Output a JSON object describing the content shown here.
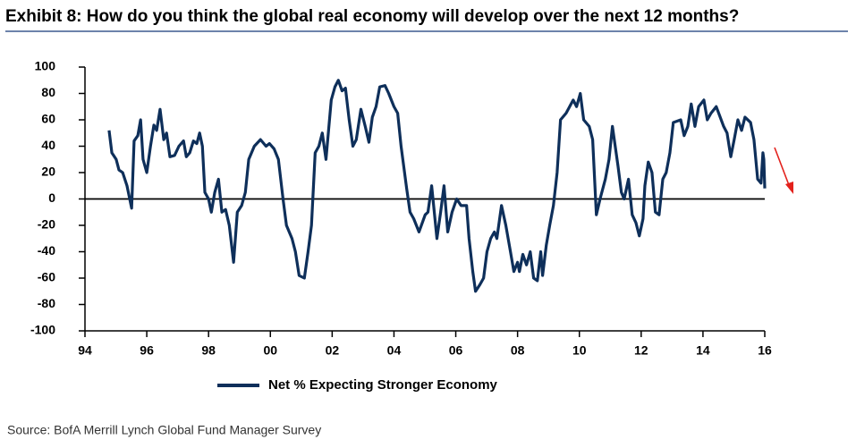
{
  "chart_data": {
    "type": "line",
    "title": "Exhibit 8: How do you think the global real economy will develop over the next 12 months?",
    "source": "Source: BofA Merrill Lynch Global Fund Manager Survey",
    "x": [
      1994.78,
      1994.87,
      1995.01,
      1995.1,
      1995.22,
      1995.36,
      1995.51,
      1995.59,
      1995.71,
      1995.8,
      1995.88,
      1996.0,
      1996.12,
      1996.23,
      1996.32,
      1996.43,
      1996.55,
      1996.64,
      1996.75,
      1996.9,
      1997.04,
      1997.19,
      1997.28,
      1997.39,
      1997.51,
      1997.62,
      1997.71,
      1997.8,
      1997.88,
      1998.0,
      1998.09,
      1998.2,
      1998.32,
      1998.43,
      1998.55,
      1998.67,
      1998.81,
      1998.93,
      1999.07,
      1999.19,
      1999.3,
      1999.48,
      1999.68,
      1999.86,
      1999.97,
      2000.12,
      2000.26,
      2000.41,
      2000.52,
      2000.7,
      2000.81,
      2000.93,
      2001.1,
      2001.22,
      2001.33,
      2001.45,
      2001.57,
      2001.68,
      2001.8,
      2001.97,
      2002.09,
      2002.2,
      2002.32,
      2002.43,
      2002.55,
      2002.67,
      2002.78,
      2002.93,
      2003.07,
      2003.19,
      2003.3,
      2003.42,
      2003.54,
      2003.71,
      2003.83,
      2004.0,
      2004.12,
      2004.23,
      2004.41,
      2004.52,
      2004.64,
      2004.81,
      2005.01,
      2005.1,
      2005.22,
      2005.39,
      2005.51,
      2005.62,
      2005.74,
      2005.88,
      2006.03,
      2006.17,
      2006.35,
      2006.43,
      2006.55,
      2006.64,
      2006.78,
      2006.9,
      2007.01,
      2007.13,
      2007.25,
      2007.33,
      2007.48,
      2007.62,
      2007.77,
      2007.88,
      2008.0,
      2008.06,
      2008.17,
      2008.29,
      2008.41,
      2008.52,
      2008.64,
      2008.75,
      2008.81,
      2008.93,
      2009.04,
      2009.16,
      2009.28,
      2009.39,
      2009.57,
      2009.8,
      2009.91,
      2010.03,
      2010.14,
      2010.32,
      2010.43,
      2010.55,
      2010.67,
      2010.84,
      2010.96,
      2011.07,
      2011.25,
      2011.36,
      2011.45,
      2011.59,
      2011.71,
      2011.83,
      2011.94,
      2012.06,
      2012.12,
      2012.23,
      2012.35,
      2012.46,
      2012.58,
      2012.7,
      2012.81,
      2012.93,
      2013.04,
      2013.28,
      2013.39,
      2013.51,
      2013.62,
      2013.74,
      2013.86,
      2014.03,
      2014.14,
      2014.26,
      2014.43,
      2014.67,
      2014.78,
      2014.9,
      2015.01,
      2015.13,
      2015.25,
      2015.36,
      2015.54,
      2015.65,
      2015.77,
      2015.88,
      2015.94,
      2015.97,
      2016.0
    ],
    "series": [
      {
        "name": "Net % Expecting Stronger Economy",
        "color": "#0e2f5a",
        "values": [
          52,
          35,
          30,
          22,
          20,
          10,
          -7,
          44,
          48,
          60,
          30,
          20,
          40,
          56,
          52,
          68,
          45,
          50,
          32,
          33,
          40,
          44,
          32,
          35,
          44,
          42,
          50,
          40,
          5,
          0,
          -10,
          5,
          15,
          -10,
          -8,
          -20,
          -48,
          -10,
          -5,
          5,
          30,
          40,
          45,
          40,
          42,
          38,
          30,
          0,
          -20,
          -30,
          -40,
          -58,
          -60,
          -40,
          -20,
          35,
          40,
          50,
          30,
          75,
          85,
          90,
          82,
          84,
          60,
          40,
          45,
          68,
          55,
          43,
          62,
          70,
          85,
          86,
          80,
          70,
          65,
          40,
          8,
          -10,
          -15,
          -25,
          -12,
          -10,
          10,
          -30,
          -10,
          10,
          -25,
          -10,
          0,
          -5,
          -5,
          -30,
          -55,
          -70,
          -65,
          -60,
          -40,
          -30,
          -25,
          -30,
          -5,
          -20,
          -40,
          -55,
          -48,
          -55,
          -42,
          -50,
          -40,
          -60,
          -62,
          -40,
          -58,
          -35,
          -20,
          -5,
          20,
          60,
          65,
          75,
          70,
          80,
          60,
          55,
          45,
          -12,
          0,
          15,
          30,
          55,
          25,
          5,
          0,
          15,
          -12,
          -18,
          -28,
          -15,
          10,
          28,
          20,
          -10,
          -12,
          15,
          20,
          35,
          58,
          60,
          48,
          55,
          72,
          55,
          70,
          75,
          60,
          65,
          70,
          55,
          50,
          32,
          45,
          60,
          52,
          62,
          58,
          45,
          15,
          12,
          35,
          30,
          8
        ]
      }
    ],
    "xlim": [
      1994,
      2016
    ],
    "xticks": [
      {
        "value": 1994,
        "label": "94"
      },
      {
        "value": 1996,
        "label": "96"
      },
      {
        "value": 1998,
        "label": "98"
      },
      {
        "value": 2000,
        "label": "00"
      },
      {
        "value": 2002,
        "label": "02"
      },
      {
        "value": 2004,
        "label": "04"
      },
      {
        "value": 2006,
        "label": "06"
      },
      {
        "value": 2008,
        "label": "08"
      },
      {
        "value": 2010,
        "label": "10"
      },
      {
        "value": 2012,
        "label": "12"
      },
      {
        "value": 2014,
        "label": "14"
      },
      {
        "value": 2016,
        "label": "16"
      }
    ],
    "ylim": [
      -100,
      100
    ],
    "yticks": [
      100,
      80,
      60,
      40,
      20,
      0,
      -20,
      -40,
      -60,
      -80,
      -100
    ],
    "zero_line": true
  }
}
